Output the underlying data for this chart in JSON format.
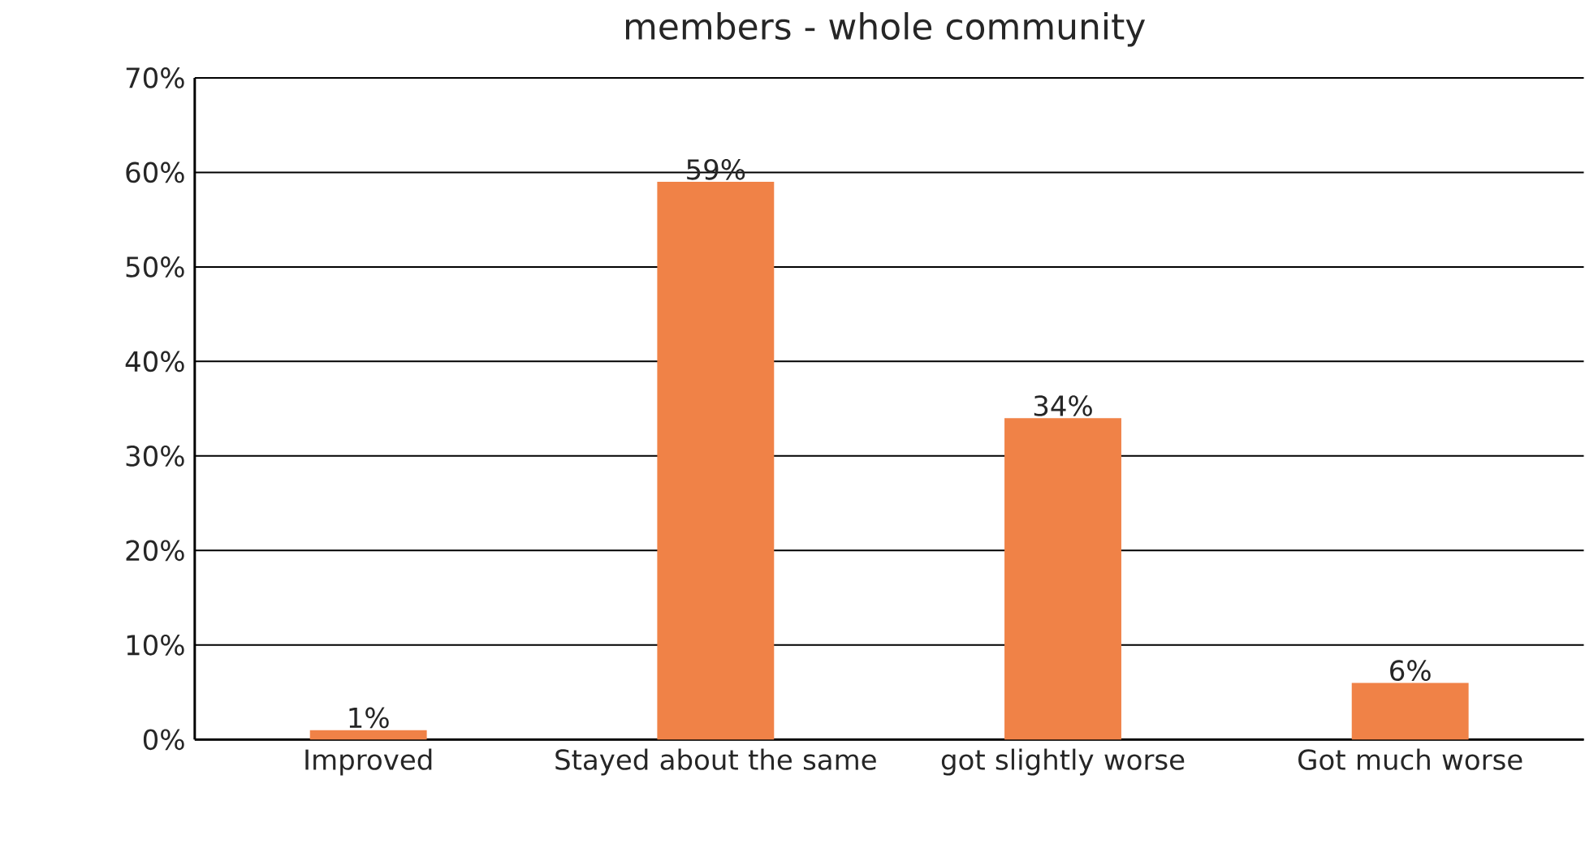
{
  "chart_data": {
    "type": "bar",
    "title": "members - whole community",
    "categories": [
      "Improved",
      "Stayed about the same",
      "got slightly worse",
      "Got much worse"
    ],
    "values": [
      1,
      59,
      34,
      6
    ],
    "value_labels": [
      "1%",
      "59%",
      "34%",
      "6%"
    ],
    "color": "#f08247",
    "ylim": [
      0,
      70
    ],
    "yticks": [
      {
        "value": 0,
        "label": "0%"
      },
      {
        "value": 10,
        "label": "10%"
      },
      {
        "value": 20,
        "label": "20%"
      },
      {
        "value": 30,
        "label": "30%"
      },
      {
        "value": 40,
        "label": "40%"
      },
      {
        "value": 50,
        "label": "50%"
      },
      {
        "value": 60,
        "label": "60%"
      },
      {
        "value": 70,
        "label": "70%"
      }
    ],
    "grid": "y"
  }
}
